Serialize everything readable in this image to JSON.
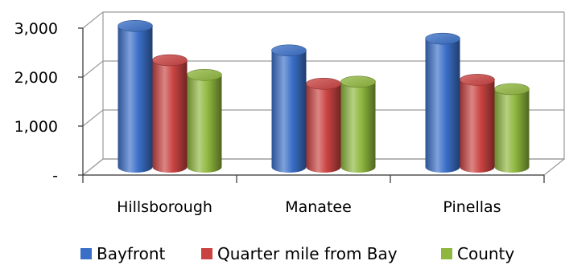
{
  "chart_data": {
    "type": "bar",
    "style": "3d-cylinder",
    "categories": [
      "Hillsborough",
      "Manatee",
      "Pinellas"
    ],
    "series": [
      {
        "name": "Bayfront",
        "values": [
          2880,
          2380,
          2620
        ],
        "color": "#3a6fc7"
      },
      {
        "name": "Quarter mile from Bay",
        "values": [
          2180,
          1700,
          1780
        ],
        "color": "#c94341"
      },
      {
        "name": "County",
        "values": [
          1880,
          1740,
          1590
        ],
        "color": "#8fb73e"
      }
    ],
    "yticks": [
      0,
      1000,
      2000,
      3000
    ],
    "ytick_labels": [
      "-",
      "1,000",
      "2,000",
      "3,000"
    ],
    "ylim": [
      0,
      3000
    ],
    "grid": true,
    "legend": "bottom"
  }
}
